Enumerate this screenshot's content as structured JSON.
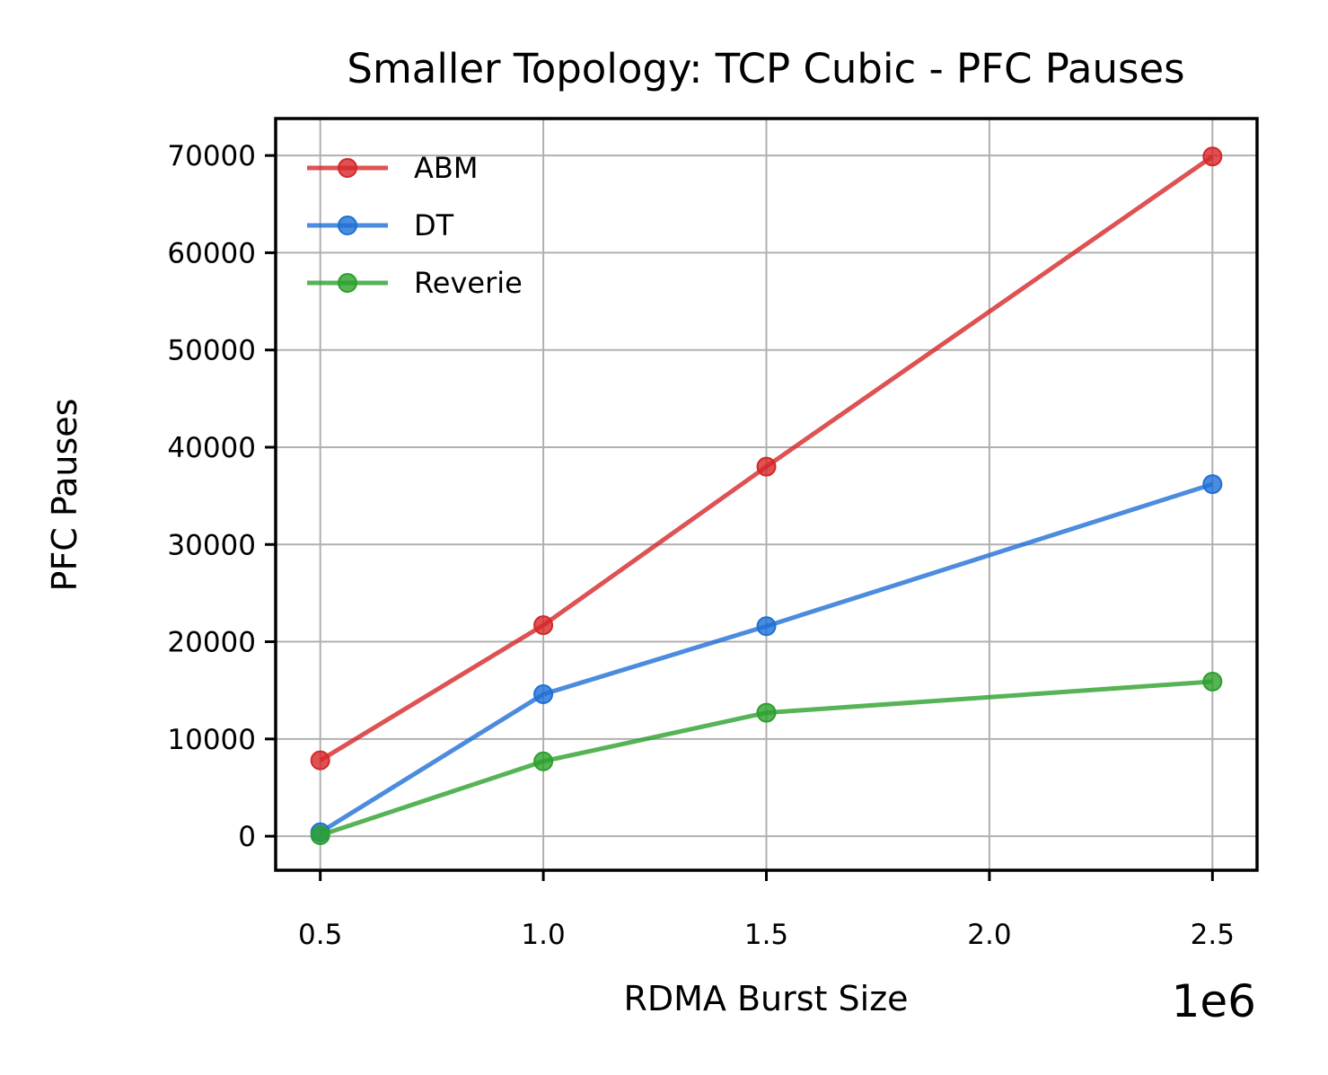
{
  "chart_data": {
    "type": "line",
    "title": "Smaller Topology: TCP Cubic - PFC Pauses",
    "xlabel": "RDMA Burst Size",
    "ylabel": "PFC Pauses",
    "x_offset_label": "1e6",
    "x": [
      0.5,
      1.0,
      1.5,
      2.5
    ],
    "xlim": [
      0.4,
      2.6
    ],
    "ylim": [
      -3500,
      73800
    ],
    "xticks": [
      0.5,
      1.0,
      1.5,
      2.0,
      2.5
    ],
    "xtick_labels": [
      "0.5",
      "1.0",
      "1.5",
      "2.0",
      "2.5"
    ],
    "yticks": [
      0,
      10000,
      20000,
      30000,
      40000,
      50000,
      60000,
      70000
    ],
    "ytick_labels": [
      "0",
      "10000",
      "20000",
      "30000",
      "40000",
      "50000",
      "60000",
      "70000"
    ],
    "grid": true,
    "legend_position": "top-left",
    "series": [
      {
        "name": "ABM",
        "color": "#d62728",
        "values": [
          7800,
          21700,
          38000,
          69900
        ]
      },
      {
        "name": "DT",
        "color": "#1f6fd6",
        "values": [
          400,
          14600,
          21600,
          36200
        ]
      },
      {
        "name": "Reverie",
        "color": "#2ca02c",
        "values": [
          100,
          7700,
          12700,
          15900
        ]
      }
    ]
  }
}
